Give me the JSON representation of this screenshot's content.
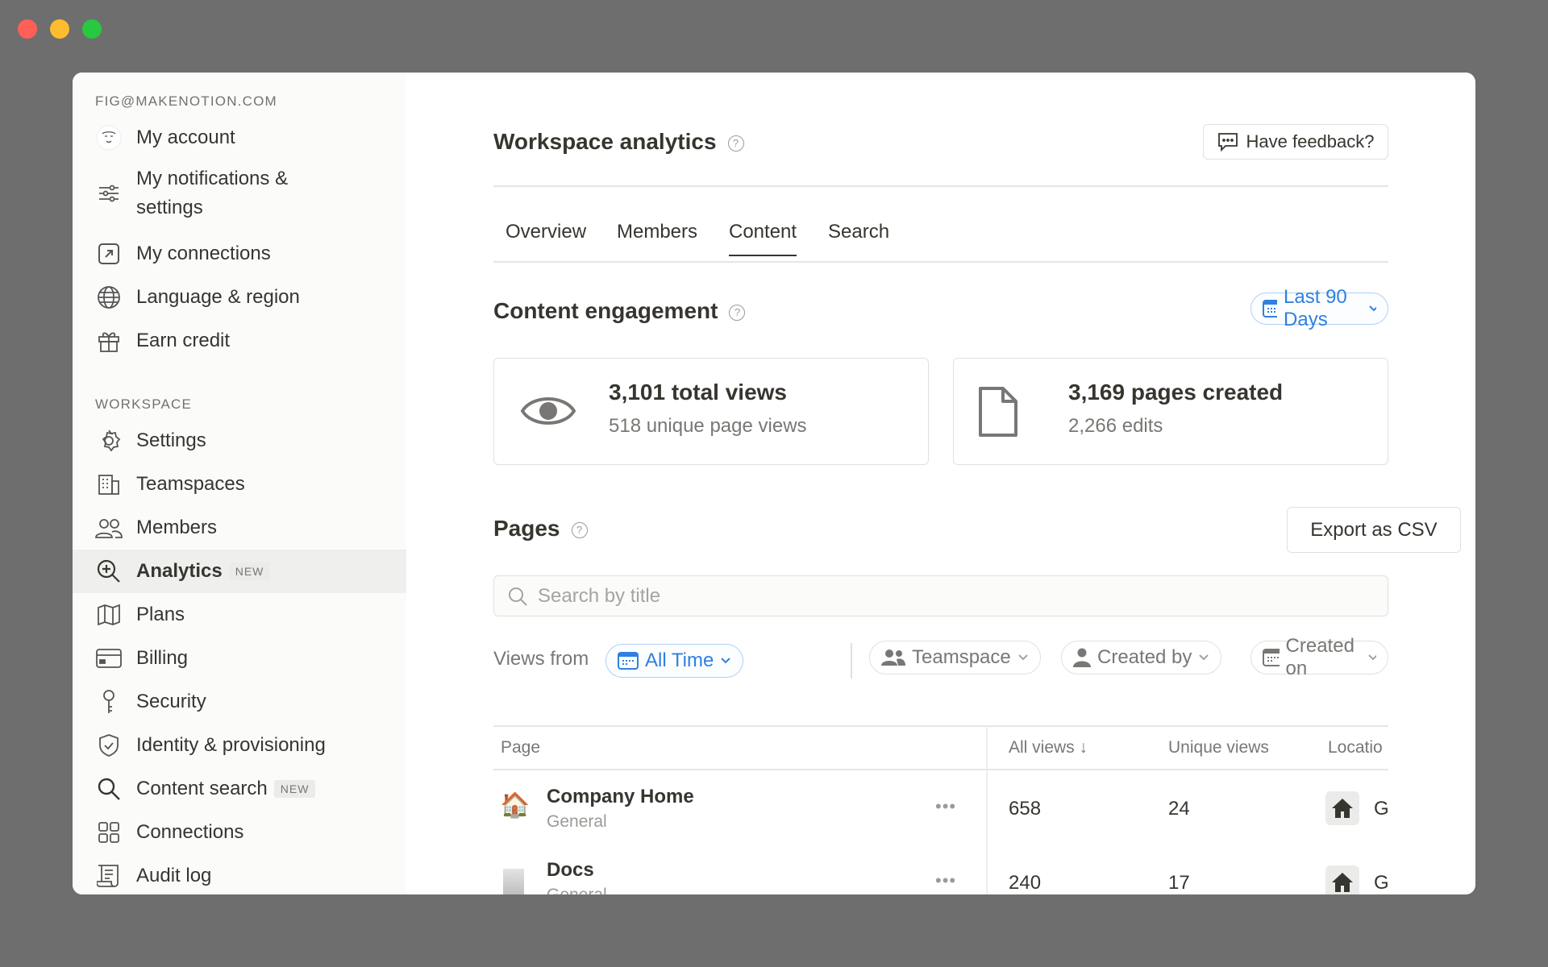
{
  "window": {
    "traffic_lights": [
      "#ff5f57",
      "#febc2e",
      "#28c840"
    ]
  },
  "sidebar": {
    "email": "FIG@MAKENOTION.COM",
    "account_items": [
      {
        "label": "My account",
        "icon": "avatar"
      },
      {
        "label": "My notifications & settings",
        "icon": "sliders-icon"
      },
      {
        "label": "My connections",
        "icon": "external-link-icon"
      },
      {
        "label": "Language & region",
        "icon": "globe-icon"
      },
      {
        "label": "Earn credit",
        "icon": "gift-icon"
      }
    ],
    "workspace_header": "WORKSPACE",
    "workspace_items": [
      {
        "label": "Settings",
        "icon": "gear-icon"
      },
      {
        "label": "Teamspaces",
        "icon": "building-icon"
      },
      {
        "label": "Members",
        "icon": "people-icon"
      },
      {
        "label": "Analytics",
        "icon": "analytics-icon",
        "badge": "NEW",
        "active": true
      },
      {
        "label": "Plans",
        "icon": "map-icon"
      },
      {
        "label": "Billing",
        "icon": "credit-card-icon"
      },
      {
        "label": "Security",
        "icon": "key-icon"
      },
      {
        "label": "Identity & provisioning",
        "icon": "shield-icon"
      },
      {
        "label": "Content search",
        "icon": "search-icon",
        "badge": "NEW"
      },
      {
        "label": "Connections",
        "icon": "grid-icon"
      },
      {
        "label": "Audit log",
        "icon": "scroll-icon"
      }
    ]
  },
  "header": {
    "title": "Workspace analytics",
    "help": "?",
    "feedback_label": "Have feedback?"
  },
  "tabs": [
    {
      "label": "Overview"
    },
    {
      "label": "Members"
    },
    {
      "label": "Content",
      "active": true
    },
    {
      "label": "Search"
    }
  ],
  "engagement": {
    "title": "Content engagement",
    "range": "Last 90 Days",
    "cards": [
      {
        "title": "3,101 total views",
        "subtitle": "518 unique page views",
        "icon": "eye-icon"
      },
      {
        "title": "3,169 pages created",
        "subtitle": "2,266 edits",
        "icon": "file-icon"
      }
    ]
  },
  "pages": {
    "title": "Pages",
    "export_label": "Export as CSV",
    "search_placeholder": "Search by title",
    "views_from_label": "Views from",
    "views_from_value": "All Time",
    "filters": [
      "Teamspace",
      "Created by",
      "Created on"
    ],
    "columns": [
      "Page",
      "All views ↓",
      "Unique views",
      "Locatio"
    ],
    "rows": [
      {
        "title": "Company Home",
        "subtitle": "General",
        "all_views": "658",
        "unique_views": "24",
        "location": "G",
        "icon": "house-emoji"
      },
      {
        "title": "Docs",
        "subtitle": "General",
        "all_views": "240",
        "unique_views": "17",
        "location": "G",
        "icon": "document-emoji"
      }
    ]
  },
  "colors": {
    "accent": "#2f80e0",
    "sidebar_bg": "#fbfbfa",
    "active_item": "#efefed"
  }
}
